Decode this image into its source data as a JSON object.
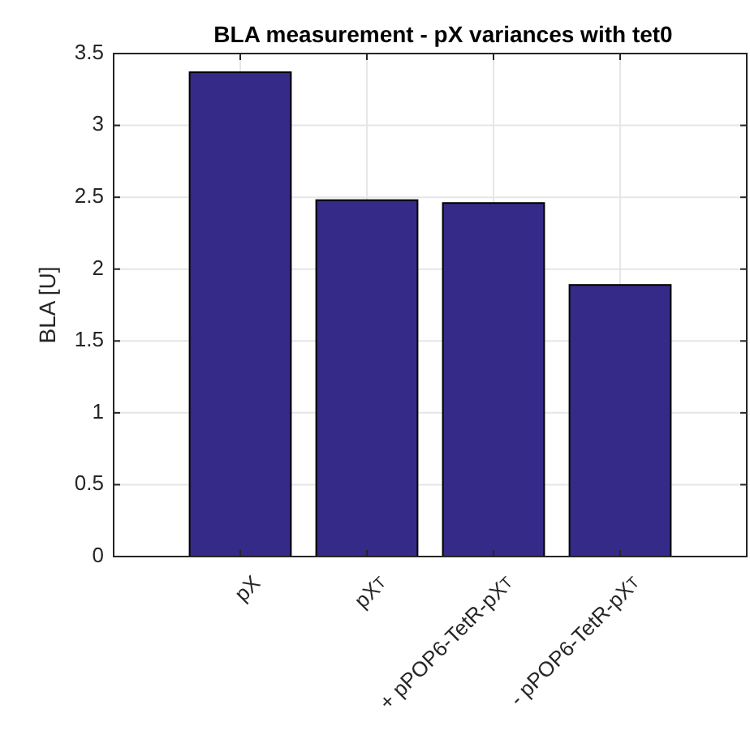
{
  "chart_data": {
    "type": "bar",
    "title": "BLA measurement - pX variances with tet0",
    "ylabel": "BLA [U]",
    "categories": [
      "pX",
      "pX$_{T}$",
      "+ pPOP6-TetR-pX$_{T}$",
      "- pPOP6-TetR-pX$_{T}$"
    ],
    "values": [
      3.37,
      2.48,
      2.46,
      1.89
    ],
    "color": "#352a87",
    "ylim": [
      0,
      3.5
    ],
    "yticks": [
      0,
      0.5,
      1,
      1.5,
      2,
      2.5,
      3,
      3.5
    ],
    "grid": true
  }
}
